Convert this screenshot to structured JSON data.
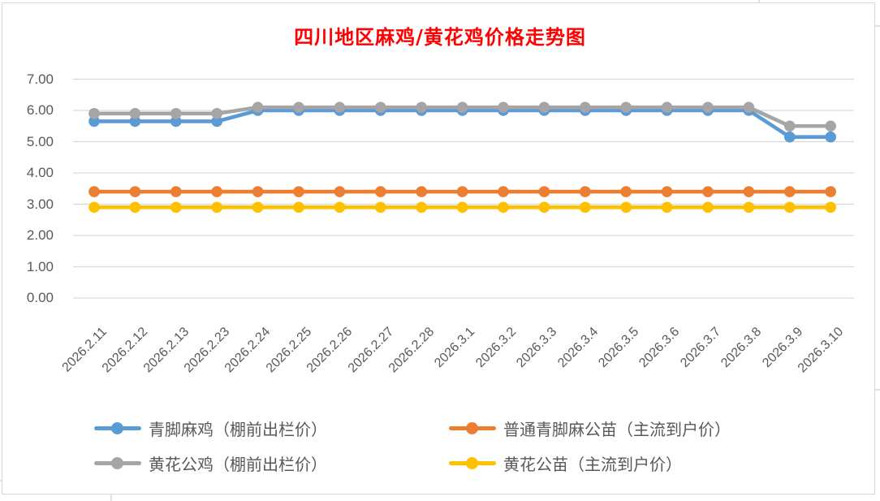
{
  "colors": {
    "background": "#FFFFFF",
    "title_text": "#FF0000",
    "axis_text": "#595959",
    "gridline": "#D9D9D9",
    "chart_border": "#D9D9D9",
    "legend_text": "#595959"
  },
  "chart_data": {
    "type": "line",
    "title": "四川地区麻鸡/黄花鸡价格走势图",
    "categories": [
      "2026.2.11",
      "2026.2.12",
      "2026.2.13",
      "2026.2.23",
      "2026.2.24",
      "2026.2.25",
      "2026.2.26",
      "2026.2.27",
      "2026.2.28",
      "2026.3.1",
      "2026.3.2",
      "2026.3.3",
      "2026.3.4",
      "2026.3.5",
      "2026.3.6",
      "2026.3.7",
      "2026.3.8",
      "2026.3.9",
      "2026.3.10"
    ],
    "series": [
      {
        "name": "青脚麻鸡（棚前出栏价）",
        "color": "#5B9BD5",
        "values": [
          5.65,
          5.65,
          5.65,
          5.65,
          6.0,
          6.0,
          6.0,
          6.0,
          6.0,
          6.0,
          6.0,
          6.0,
          6.0,
          6.0,
          6.0,
          6.0,
          6.0,
          5.15,
          5.15
        ]
      },
      {
        "name": "普通青脚麻公苗（主流到户价）",
        "color": "#ED7D31",
        "values": [
          3.4,
          3.4,
          3.4,
          3.4,
          3.4,
          3.4,
          3.4,
          3.4,
          3.4,
          3.4,
          3.4,
          3.4,
          3.4,
          3.4,
          3.4,
          3.4,
          3.4,
          3.4,
          3.4
        ]
      },
      {
        "name": "黄花公鸡（棚前出栏价）",
        "color": "#A5A5A5",
        "values": [
          5.9,
          5.9,
          5.9,
          5.9,
          6.1,
          6.1,
          6.1,
          6.1,
          6.1,
          6.1,
          6.1,
          6.1,
          6.1,
          6.1,
          6.1,
          6.1,
          6.1,
          5.5,
          5.5
        ]
      },
      {
        "name": "黄花公苗（主流到户价）",
        "color": "#FFC000",
        "values": [
          2.9,
          2.9,
          2.9,
          2.9,
          2.9,
          2.9,
          2.9,
          2.9,
          2.9,
          2.9,
          2.9,
          2.9,
          2.9,
          2.9,
          2.9,
          2.9,
          2.9,
          2.9,
          2.9
        ]
      }
    ],
    "ylim": [
      0,
      7
    ],
    "ytick_step": 1,
    "ytick_labels": [
      "0.00",
      "1.00",
      "2.00",
      "3.00",
      "4.00",
      "5.00",
      "6.00",
      "7.00"
    ],
    "grid": "horizontal",
    "legend_position": "bottom",
    "legend_columns": 2
  }
}
